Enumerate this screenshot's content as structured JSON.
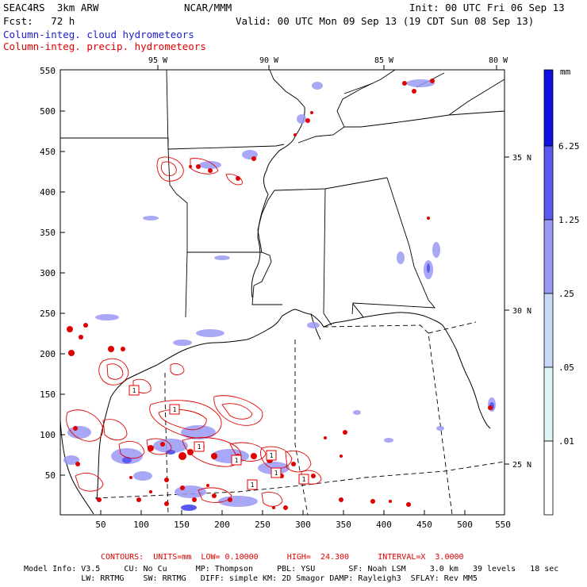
{
  "header": {
    "model": "SEAC4RS  3km ARW",
    "center": "NCAR/MMM",
    "init": "Init: 00 UTC Fri 06 Sep 13",
    "fcst": "Fcst:   72 h",
    "valid": "Valid: 00 UTC Mon 09 Sep 13 (19 CDT Sun 08 Sep 13)",
    "field1": "Column-integ. cloud hydrometeors",
    "field2": "Column-integ. precip. hydrometeors"
  },
  "axes": {
    "x_ticks": [
      "50",
      "100",
      "150",
      "200",
      "250",
      "300",
      "350",
      "400",
      "450",
      "500",
      "550"
    ],
    "y_ticks": [
      "550",
      "500",
      "450",
      "400",
      "350",
      "300",
      "250",
      "200",
      "150",
      "100",
      "50"
    ],
    "lon_labels": [
      "95 W",
      "90 W",
      "85 W",
      "80 W"
    ],
    "lat_labels": [
      "35 N",
      "30 N",
      "25 N"
    ]
  },
  "colorbar": {
    "unit": "mm",
    "labels": [
      "6.25",
      "1.25",
      ".25",
      ".05",
      ".01"
    ],
    "colors": [
      "#1010e0",
      "#5a5af0",
      "#9a9af5",
      "#c8d8f8",
      "#e0f6f6",
      "#ffffff"
    ]
  },
  "contour_labels": [
    "1",
    "1",
    "1",
    "1",
    "1",
    "1",
    "1",
    "1"
  ],
  "footer": {
    "contours": "CONTOURS:  UNITS=mm  LOW= 0.10000      HIGH=  24.300      INTERVAL=X  3.0000",
    "line1": "Model Info: V3.5     CU: No Cu      MP: Thompson     PBL: YSU       SF: Noah LSM     3.0 km   39 levels   18 sec",
    "line2": "            LW: RRTMG    SW: RRTMG   DIFF: simple KM: 2D Smagor DAMP: Rayleigh3  SFLAY: Rev MM5"
  }
}
